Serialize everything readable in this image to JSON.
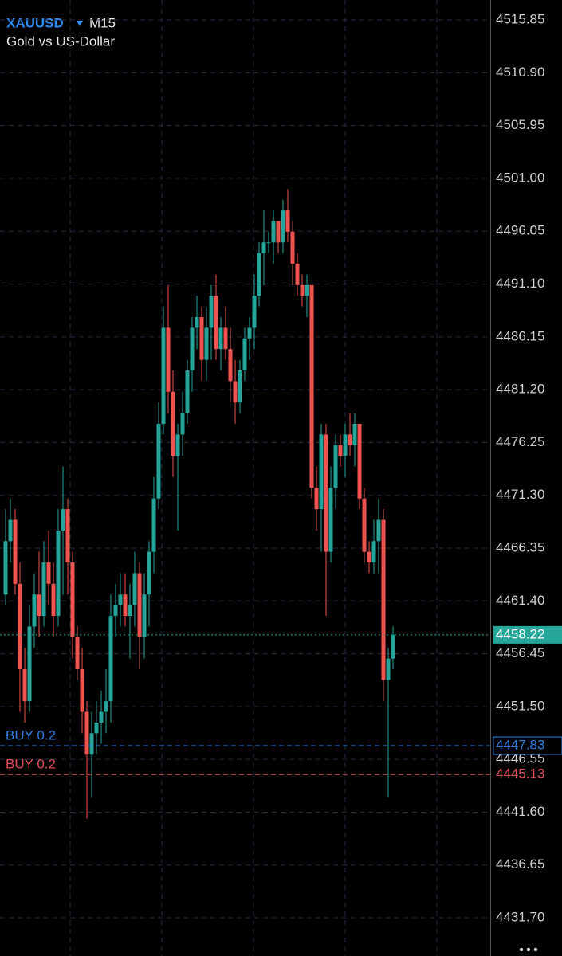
{
  "chart_data": {
    "type": "candlestick",
    "symbol": "XAUUSD",
    "timeframe": "M15",
    "description": "Gold vs US-Dollar",
    "up_color": "#26a69a",
    "down_color": "#ef5350",
    "ylim": [
      4428.12,
      4517.72
    ],
    "yticks": [
      4515.85,
      {
        "value": 4510.9,
        "label": "4510.90"
      },
      4505.95,
      {
        "value": 4501,
        "label": "4501.00"
      },
      4496.05,
      {
        "value": 4491.1,
        "label": "4491.10"
      },
      4486.15,
      {
        "value": 4481.2,
        "label": "4481.20"
      },
      4476.25,
      {
        "value": 4471.3,
        "label": "4471.30"
      },
      4466.35,
      {
        "value": 4461.4,
        "label": "4461.40"
      },
      4456.45,
      {
        "value": 4451.5,
        "label": "4451.50"
      },
      4446.55,
      {
        "value": 4441.6,
        "label": "4441.60"
      },
      4436.65,
      {
        "value": 4431.7,
        "label": "4431.70"
      }
    ],
    "grid": true,
    "open": [
      4462,
      4467,
      4469,
      4463,
      4455,
      4452,
      4459,
      4462,
      4460,
      4465,
      4463,
      4460,
      4468,
      4470,
      4465,
      4458,
      4455,
      4451,
      4447,
      4449,
      4450,
      4451,
      4452,
      4460,
      4461,
      4462,
      4460,
      4461,
      4464,
      4458,
      4462,
      4466,
      4471,
      4478,
      4487,
      4481,
      4475,
      4477,
      4479,
      4483,
      4487,
      4488,
      4484,
      4487,
      4490,
      4485,
      4487,
      4485,
      4482,
      4480,
      4483,
      4486,
      4487,
      4490,
      4494,
      4495,
      4495,
      4497,
      4495,
      4498,
      4496,
      4493,
      4491,
      4490,
      4491,
      4472,
      4470,
      4477,
      4466,
      4472,
      4476,
      4475,
      4477,
      4476,
      4478,
      4471,
      4466,
      4465,
      4467,
      4469,
      4454,
      4456
    ],
    "high": [
      4470,
      4471,
      4470,
      4465,
      4457,
      4461,
      4464,
      4466,
      4467,
      4468,
      4465,
      4470,
      4474,
      4471,
      4466,
      4459,
      4457,
      4452,
      4451,
      4452,
      4453,
      4455,
      4462,
      4463,
      4464,
      4464,
      4463,
      4466,
      4465,
      4464,
      4467,
      4473,
      4480,
      4489,
      4491,
      4483,
      4478,
      4481,
      4484,
      4488,
      4490,
      4489,
      4489,
      4491,
      4492,
      4488,
      4489,
      4487,
      4484,
      4484,
      4487,
      4488,
      4492,
      4495,
      4498,
      4496,
      4498,
      4497,
      4499,
      4500,
      4497,
      4494,
      4492,
      4492,
      4491,
      4474,
      4478,
      4478,
      4474,
      4477,
      4477,
      4478,
      4479,
      4479,
      4478,
      4472,
      4467,
      4469,
      4471,
      4470,
      4457,
      4459
    ],
    "low": [
      4461,
      4465,
      4462,
      4451,
      4450,
      4451,
      4457,
      4458,
      4459,
      4461,
      4458,
      4459,
      4462,
      4462,
      4456,
      4454,
      4449,
      4441,
      4443,
      4447,
      4448,
      4449,
      4450,
      4458,
      4459,
      4459,
      4456,
      4459,
      4455,
      4456,
      4459,
      4464,
      4470,
      4477,
      4479,
      4473,
      4468,
      4475,
      4478,
      4481,
      4485,
      4482,
      4482,
      4484,
      4484,
      4483,
      4484,
      4480,
      4478,
      4479,
      4482,
      4484,
      4485,
      4489,
      4491,
      4494,
      4493,
      4494,
      4494,
      4495,
      4491,
      4490,
      4489,
      4488,
      4471,
      4468,
      4466,
      4460,
      4465,
      4470,
      4474,
      4473,
      4475,
      4474,
      4470,
      4465,
      4464,
      4464,
      4464,
      4452,
      4443,
      4455
    ],
    "close": [
      4467,
      4469,
      4463,
      4455,
      4452,
      4459,
      4462,
      4460,
      4465,
      4463,
      4460,
      4468,
      4470,
      4465,
      4458,
      4455,
      4451,
      4447,
      4449,
      4450,
      4451,
      4452,
      4460,
      4461,
      4462,
      4460,
      4461,
      4464,
      4458,
      4462,
      4466,
      4471,
      4478,
      4487,
      4481,
      4475,
      4477,
      4479,
      4483,
      4487,
      4488,
      4484,
      4487,
      4490,
      4485,
      4487,
      4485,
      4482,
      4480,
      4483,
      4486,
      4487,
      4490,
      4494,
      4495,
      4495,
      4497,
      4495,
      4498,
      4496,
      4493,
      4491,
      4490,
      4491,
      4472,
      4470,
      4477,
      4466,
      4472,
      4476,
      4475,
      4477,
      4476,
      4478,
      4471,
      4466,
      4465,
      4467,
      4469,
      4454,
      4456,
      4458.22
    ],
    "price_lines": [
      {
        "label": "BUY 0.2",
        "value": 4447.83,
        "color": "#2f7de1"
      },
      {
        "label": "BUY 0.2",
        "value": 4445.13,
        "color": "#e0505a"
      }
    ]
  }
}
